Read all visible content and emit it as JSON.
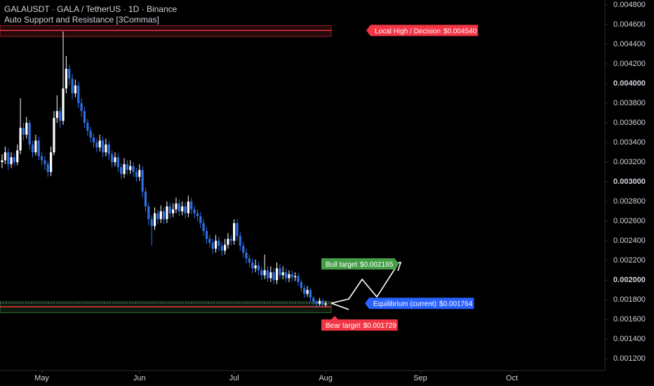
{
  "chart_data": {
    "type": "candlestick",
    "title": "GALAUSDT · GALA / TetherUS · 1D · Binance",
    "subtitle": "Auto Support and Resistance [3Commas]",
    "up_color": "#ffffff",
    "down_color": "#2f6fe4",
    "xlim": [
      0,
      197
    ],
    "xticks": [
      {
        "value": 13,
        "label": "May"
      },
      {
        "value": 45,
        "label": "Jun"
      },
      {
        "value": 76,
        "label": "Jul"
      },
      {
        "value": 106,
        "label": "Aug"
      },
      {
        "value": 137,
        "label": "Sep"
      },
      {
        "value": 167,
        "label": "Oct"
      }
    ],
    "ylim": [
      0.00108,
      0.00485
    ],
    "yticks": [
      {
        "value": 0.0048,
        "label": "0.004800"
      },
      {
        "value": 0.0046,
        "label": "0.004600"
      },
      {
        "value": 0.0044,
        "label": "0.004400"
      },
      {
        "value": 0.0042,
        "label": "0.004200"
      },
      {
        "value": 0.004,
        "label": "0.004000",
        "bold": true
      },
      {
        "value": 0.0038,
        "label": "0.003800"
      },
      {
        "value": 0.0036,
        "label": "0.003600"
      },
      {
        "value": 0.0034,
        "label": "0.003400"
      },
      {
        "value": 0.0032,
        "label": "0.003200"
      },
      {
        "value": 0.003,
        "label": "0.003000",
        "bold": true
      },
      {
        "value": 0.0028,
        "label": "0.002800"
      },
      {
        "value": 0.0026,
        "label": "0.002600"
      },
      {
        "value": 0.0024,
        "label": "0.002400"
      },
      {
        "value": 0.0022,
        "label": "0.002200"
      },
      {
        "value": 0.002,
        "label": "0.002000",
        "bold": true
      },
      {
        "value": 0.0018,
        "label": "0.001800"
      },
      {
        "value": 0.0016,
        "label": "0.001600"
      },
      {
        "value": 0.0014,
        "label": "0.001400"
      },
      {
        "value": 0.0012,
        "label": "0.001200"
      }
    ],
    "zones": [
      {
        "low": 0.00448,
        "high": 0.00459,
        "color": "#f23645"
      },
      {
        "low": 0.00167,
        "high": 0.00178,
        "color": "#4caf50"
      }
    ],
    "levels": [
      {
        "name": "Local High / Decision",
        "value": 0.00454,
        "value_label": "$0.004540",
        "color": "#f23645",
        "line": true
      },
      {
        "name": "Bull target",
        "value": 0.002165,
        "value_label": "$0.002165",
        "color": "#43a047",
        "line": false
      },
      {
        "name": "Equilibrium (current)",
        "value": 0.001764,
        "value_label": "$0.001764",
        "color": "#2962ff",
        "line": true
      },
      {
        "name": "Bear target",
        "value": 0.001729,
        "value_label": "$0.001729",
        "color": "#f23645",
        "line": true
      }
    ],
    "x": [
      0,
      1,
      2,
      3,
      4,
      5,
      6,
      7,
      8,
      9,
      10,
      11,
      12,
      13,
      14,
      15,
      16,
      17,
      18,
      19,
      20,
      21,
      22,
      23,
      24,
      25,
      26,
      27,
      28,
      29,
      30,
      31,
      32,
      33,
      34,
      35,
      36,
      37,
      38,
      39,
      40,
      41,
      42,
      43,
      44,
      45,
      46,
      47,
      48,
      49,
      50,
      51,
      52,
      53,
      54,
      55,
      56,
      57,
      58,
      59,
      60,
      61,
      62,
      63,
      64,
      65,
      66,
      67,
      68,
      69,
      70,
      71,
      72,
      73,
      74,
      75,
      76,
      77,
      78,
      79,
      80,
      81,
      82,
      83,
      84,
      85,
      86,
      87,
      88,
      89,
      90,
      91,
      92,
      93,
      94,
      95,
      96,
      97,
      98,
      99,
      100,
      101,
      102,
      103,
      104,
      105,
      106
    ],
    "candles": [
      [
        0.0032,
        0.00328,
        0.00314,
        0.00322
      ],
      [
        0.00322,
        0.00336,
        0.00318,
        0.0033
      ],
      [
        0.0033,
        0.00334,
        0.00312,
        0.00318
      ],
      [
        0.00318,
        0.0033,
        0.00314,
        0.00325
      ],
      [
        0.00325,
        0.00329,
        0.00316,
        0.0032
      ],
      [
        0.0032,
        0.00338,
        0.00317,
        0.00332
      ],
      [
        0.00332,
        0.00385,
        0.00328,
        0.00355
      ],
      [
        0.00355,
        0.0036,
        0.00342,
        0.00348
      ],
      [
        0.00348,
        0.00366,
        0.00344,
        0.0036
      ],
      [
        0.0036,
        0.00363,
        0.00333,
        0.00338
      ],
      [
        0.00338,
        0.00342,
        0.00325,
        0.0033
      ],
      [
        0.0033,
        0.00348,
        0.00327,
        0.00342
      ],
      [
        0.00342,
        0.00346,
        0.00322,
        0.00326
      ],
      [
        0.00326,
        0.0033,
        0.00317,
        0.00322
      ],
      [
        0.00322,
        0.00326,
        0.00312,
        0.00318
      ],
      [
        0.00318,
        0.00321,
        0.00305,
        0.0031
      ],
      [
        0.0031,
        0.00336,
        0.00306,
        0.0033
      ],
      [
        0.0033,
        0.00372,
        0.00327,
        0.00365
      ],
      [
        0.00365,
        0.00388,
        0.0036,
        0.00372
      ],
      [
        0.00372,
        0.00376,
        0.00355,
        0.00362
      ],
      [
        0.00362,
        0.00453,
        0.00358,
        0.00395
      ],
      [
        0.00395,
        0.00428,
        0.0039,
        0.00415
      ],
      [
        0.00415,
        0.00419,
        0.00398,
        0.00405
      ],
      [
        0.00405,
        0.0041,
        0.00384,
        0.0039
      ],
      [
        0.0039,
        0.00404,
        0.00386,
        0.00398
      ],
      [
        0.00398,
        0.00402,
        0.00375,
        0.0038
      ],
      [
        0.0038,
        0.00385,
        0.00366,
        0.00372
      ],
      [
        0.00372,
        0.00376,
        0.00355,
        0.0036
      ],
      [
        0.0036,
        0.00364,
        0.00347,
        0.00352
      ],
      [
        0.00352,
        0.00356,
        0.0034,
        0.00345
      ],
      [
        0.00345,
        0.00349,
        0.00335,
        0.0034
      ],
      [
        0.0034,
        0.00344,
        0.0033,
        0.00335
      ],
      [
        0.00335,
        0.00348,
        0.00331,
        0.00342
      ],
      [
        0.00342,
        0.00346,
        0.00325,
        0.0033
      ],
      [
        0.0033,
        0.00344,
        0.00326,
        0.00338
      ],
      [
        0.00338,
        0.00342,
        0.00322,
        0.00328
      ],
      [
        0.00328,
        0.00332,
        0.00315,
        0.0032
      ],
      [
        0.0032,
        0.0033,
        0.00316,
        0.00325
      ],
      [
        0.00325,
        0.00329,
        0.0031,
        0.00315
      ],
      [
        0.00315,
        0.00319,
        0.00303,
        0.00308
      ],
      [
        0.00308,
        0.00324,
        0.00304,
        0.00318
      ],
      [
        0.00318,
        0.00322,
        0.00307,
        0.00312
      ],
      [
        0.00312,
        0.00322,
        0.00308,
        0.00316
      ],
      [
        0.00316,
        0.0032,
        0.00305,
        0.0031
      ],
      [
        0.0031,
        0.00314,
        0.003,
        0.00305
      ],
      [
        0.00305,
        0.00318,
        0.00301,
        0.00312
      ],
      [
        0.00312,
        0.00316,
        0.00284,
        0.0029
      ],
      [
        0.0029,
        0.00294,
        0.0027,
        0.00275
      ],
      [
        0.00275,
        0.00279,
        0.00256,
        0.00262
      ],
      [
        0.00262,
        0.00266,
        0.00235,
        0.00255
      ],
      [
        0.00255,
        0.00274,
        0.00251,
        0.00268
      ],
      [
        0.00268,
        0.00272,
        0.00257,
        0.00262
      ],
      [
        0.00262,
        0.00276,
        0.00258,
        0.0027
      ],
      [
        0.0027,
        0.00274,
        0.00257,
        0.00262
      ],
      [
        0.00262,
        0.0028,
        0.00258,
        0.00275
      ],
      [
        0.00275,
        0.00279,
        0.00263,
        0.00268
      ],
      [
        0.00268,
        0.00278,
        0.00264,
        0.00272
      ],
      [
        0.00272,
        0.00284,
        0.00268,
        0.00278
      ],
      [
        0.00278,
        0.00282,
        0.00265,
        0.0027
      ],
      [
        0.0027,
        0.0028,
        0.00266,
        0.00275
      ],
      [
        0.00275,
        0.00279,
        0.00263,
        0.00268
      ],
      [
        0.00268,
        0.00286,
        0.00264,
        0.0028
      ],
      [
        0.0028,
        0.00284,
        0.00267,
        0.00272
      ],
      [
        0.00272,
        0.00276,
        0.00263,
        0.00268
      ],
      [
        0.00268,
        0.00272,
        0.0026,
        0.00265
      ],
      [
        0.00265,
        0.00269,
        0.00253,
        0.00258
      ],
      [
        0.00258,
        0.00262,
        0.00245,
        0.0025
      ],
      [
        0.0025,
        0.00254,
        0.00237,
        0.00242
      ],
      [
        0.00242,
        0.00246,
        0.00233,
        0.00238
      ],
      [
        0.00238,
        0.00242,
        0.00227,
        0.00232
      ],
      [
        0.00232,
        0.00246,
        0.00228,
        0.0024
      ],
      [
        0.0024,
        0.00244,
        0.0023,
        0.00235
      ],
      [
        0.00235,
        0.00239,
        0.00225,
        0.0023
      ],
      [
        0.0023,
        0.00242,
        0.00226,
        0.00236
      ],
      [
        0.00236,
        0.00248,
        0.00232,
        0.00242
      ],
      [
        0.00242,
        0.00246,
        0.00235,
        0.0024
      ],
      [
        0.0024,
        0.00262,
        0.00236,
        0.00258
      ],
      [
        0.00258,
        0.00262,
        0.0024,
        0.00245
      ],
      [
        0.00245,
        0.00249,
        0.0023,
        0.00235
      ],
      [
        0.00235,
        0.00239,
        0.00223,
        0.00228
      ],
      [
        0.00228,
        0.00232,
        0.00217,
        0.00222
      ],
      [
        0.00222,
        0.00226,
        0.00213,
        0.00218
      ],
      [
        0.00218,
        0.00222,
        0.00207,
        0.00212
      ],
      [
        0.00212,
        0.00221,
        0.00208,
        0.00215
      ],
      [
        0.00215,
        0.00219,
        0.00205,
        0.0021
      ],
      [
        0.0021,
        0.00214,
        0.002,
        0.00205
      ],
      [
        0.00205,
        0.00226,
        0.00201,
        0.0021
      ],
      [
        0.0021,
        0.00214,
        0.00198,
        0.00202
      ],
      [
        0.00202,
        0.00214,
        0.00198,
        0.00208
      ],
      [
        0.00208,
        0.00212,
        0.00196,
        0.002
      ],
      [
        0.002,
        0.00218,
        0.00196,
        0.00212
      ],
      [
        0.00212,
        0.00216,
        0.00201,
        0.00205
      ],
      [
        0.00205,
        0.00214,
        0.00201,
        0.00208
      ],
      [
        0.00208,
        0.00212,
        0.00198,
        0.00202
      ],
      [
        0.00202,
        0.0021,
        0.00198,
        0.00206
      ],
      [
        0.00206,
        0.0021,
        0.00199,
        0.00203
      ],
      [
        0.00203,
        0.00208,
        0.00199,
        0.00204
      ],
      [
        0.00204,
        0.00207,
        0.00194,
        0.00198
      ],
      [
        0.00198,
        0.00201,
        0.00188,
        0.00192
      ],
      [
        0.00192,
        0.00195,
        0.00182,
        0.00186
      ],
      [
        0.00186,
        0.00194,
        0.00183,
        0.0019
      ],
      [
        0.0019,
        0.00192,
        0.00178,
        0.00182
      ],
      [
        0.00182,
        0.00184,
        0.00175,
        0.00178
      ],
      [
        0.00178,
        0.0018,
        0.00172,
        0.00176
      ],
      [
        0.00176,
        0.00182,
        0.00174,
        0.00179
      ],
      [
        0.00179,
        0.00181,
        0.00173,
        0.00175
      ],
      [
        0.00175,
        0.00179,
        0.00173,
        0.001764
      ]
    ]
  }
}
